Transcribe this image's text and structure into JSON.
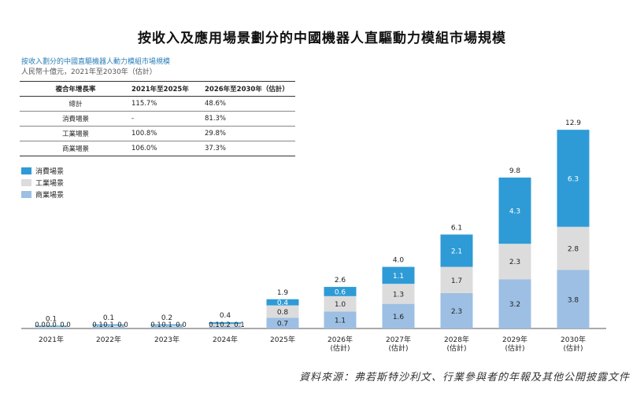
{
  "title": "按收入及應用場景劃分的中國機器人直驅動力模組市場規模",
  "subtitle": "按收入劃分的中國直驅機器人動力模組市場規模",
  "unit": "人民幣十億元，2021年至2030年（估計）",
  "source": "資料來源：弗若斯特沙利文、行業參與者的年報及其他公開披露文件",
  "cagr_table": {
    "headers": [
      "複合年增長率",
      "2021年至2025年",
      "2026年至2030年（估計）"
    ],
    "rows": [
      [
        "總計",
        "115.7%",
        "48.6%"
      ],
      [
        "消費場景",
        "-",
        "81.3%"
      ],
      [
        "工業場景",
        "100.8%",
        "29.8%"
      ],
      [
        "商業場景",
        "106.0%",
        "37.3%"
      ]
    ]
  },
  "colors": {
    "consumer": "#2e9bd6",
    "industrial": "#dcdcdc",
    "commercial": "#9dbfe3"
  },
  "chart_data": {
    "type": "bar",
    "stacked": true,
    "categories": [
      "2021年",
      "2022年",
      "2023年",
      "2024年",
      "2025年",
      "2026年\n(估計)",
      "2027年\n(估計)",
      "2028年\n(估計)",
      "2029年\n(估計)",
      "2030年\n(估計)"
    ],
    "series": [
      {
        "name": "商業場景",
        "values": [
          0.0,
          0.1,
          0.1,
          0.1,
          0.7,
          1.1,
          1.6,
          2.3,
          3.2,
          3.8
        ],
        "labels": [
          "0.0",
          "0.1",
          "0.1",
          "0.1",
          "0.7",
          "1.1",
          "1.6",
          "2.3",
          "3.2",
          "3.8"
        ]
      },
      {
        "name": "工業場景",
        "values": [
          0.0,
          0.1,
          0.1,
          0.2,
          0.8,
          1.0,
          1.3,
          1.7,
          2.3,
          2.8
        ],
        "labels": [
          "0.0",
          "0.1",
          "0.1",
          "0.2",
          "0.8",
          "1.0",
          "1.3",
          "1.7",
          "2.3",
          "2.8"
        ]
      },
      {
        "name": "消費場景",
        "values": [
          0.0,
          0.0,
          0.0,
          0.1,
          0.4,
          0.6,
          1.1,
          2.1,
          4.3,
          6.3
        ],
        "labels": [
          "0.0",
          "0.0",
          "0.0",
          "0.1",
          "0.4",
          "0.6",
          "1.1",
          "2.1",
          "4.3",
          "6.3"
        ]
      }
    ],
    "totals": [
      "0.1",
      "0.1",
      "0.2",
      "0.4",
      "1.9",
      "2.6",
      "4.0",
      "6.1",
      "9.8",
      "12.9"
    ],
    "legend": [
      "消費場景",
      "工業場景",
      "商業場景"
    ],
    "legend_position": "left",
    "grid": false
  }
}
